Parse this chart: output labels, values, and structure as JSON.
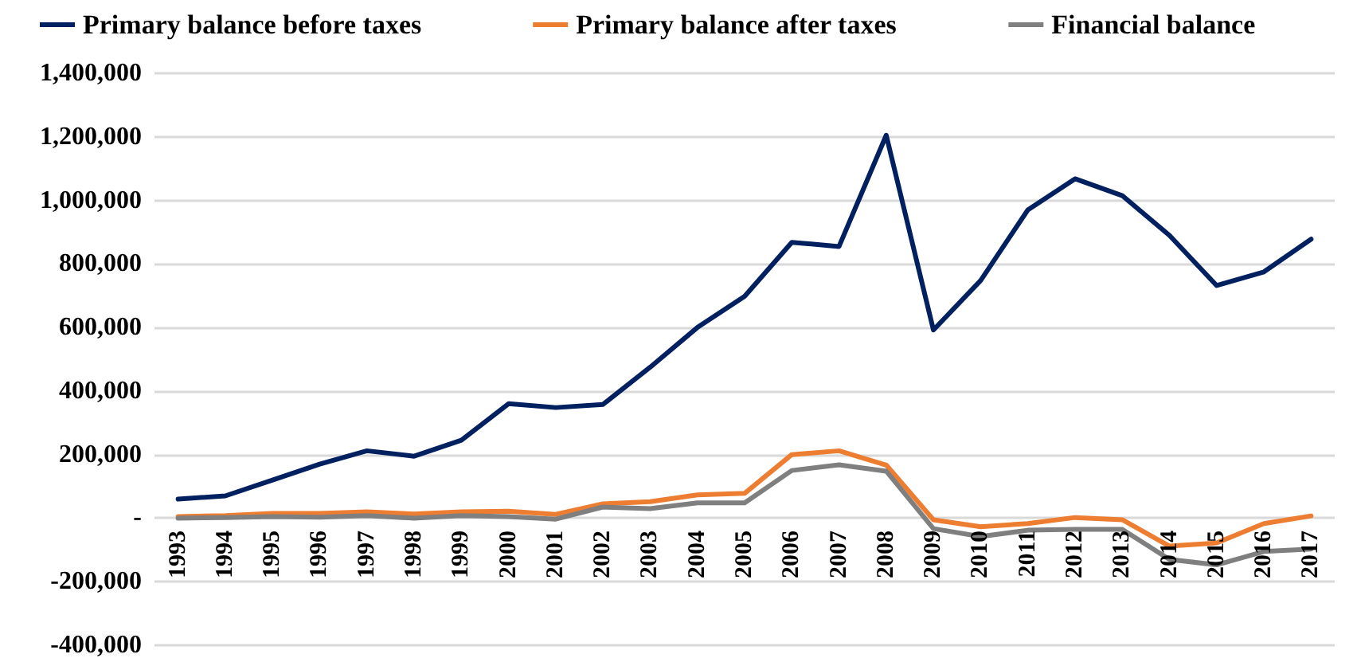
{
  "chart_data": {
    "type": "line",
    "categories": [
      "1993",
      "1994",
      "1995",
      "1996",
      "1997",
      "1998",
      "1999",
      "2000",
      "2001",
      "2002",
      "2003",
      "2004",
      "2005",
      "2006",
      "2007",
      "2008",
      "2009",
      "2010",
      "2011",
      "2012",
      "2013",
      "2014",
      "2015",
      "2016",
      "2017"
    ],
    "series": [
      {
        "name": "Primary balance before taxes",
        "color": "#002060",
        "values": [
          60000,
          70000,
          120000,
          170000,
          212000,
          195000,
          245000,
          360000,
          348000,
          358000,
          475000,
          600000,
          698000,
          868000,
          855000,
          1205000,
          592000,
          748000,
          970000,
          1068000,
          1015000,
          890000,
          732000,
          775000,
          878000
        ]
      },
      {
        "name": "Primary balance after taxes",
        "color": "#ed7d31",
        "values": [
          5000,
          8000,
          15000,
          15000,
          20000,
          13000,
          20000,
          22000,
          12000,
          45000,
          52000,
          73000,
          78000,
          200000,
          212000,
          167000,
          -5000,
          -27000,
          -17000,
          2000,
          -5000,
          -88000,
          -78000,
          -17000,
          7000
        ]
      },
      {
        "name": "Financial balance",
        "color": "#7f7f7f",
        "values": [
          0,
          2000,
          5000,
          3000,
          8000,
          0,
          8000,
          5000,
          -3000,
          35000,
          30000,
          48000,
          48000,
          150000,
          168000,
          148000,
          -33000,
          -58000,
          -38000,
          -35000,
          -35000,
          -130000,
          -147000,
          -105000,
          -97000
        ]
      }
    ],
    "ylim": [
      -400000,
      1400000
    ],
    "yticks": [
      {
        "value": -400000,
        "label": "-400,000"
      },
      {
        "value": -200000,
        "label": "-200,000"
      },
      {
        "value": 0,
        "label": "-"
      },
      {
        "value": 200000,
        "label": "200,000"
      },
      {
        "value": 400000,
        "label": "400,000"
      },
      {
        "value": 600000,
        "label": "600,000"
      },
      {
        "value": 800000,
        "label": "800,000"
      },
      {
        "value": 1000000,
        "label": "1,000,000"
      },
      {
        "value": 1200000,
        "label": "1,200,000"
      },
      {
        "value": 1400000,
        "label": "1,400,000"
      }
    ],
    "grid": "y",
    "legend": "top",
    "marker": "none",
    "line_style": "solid"
  }
}
